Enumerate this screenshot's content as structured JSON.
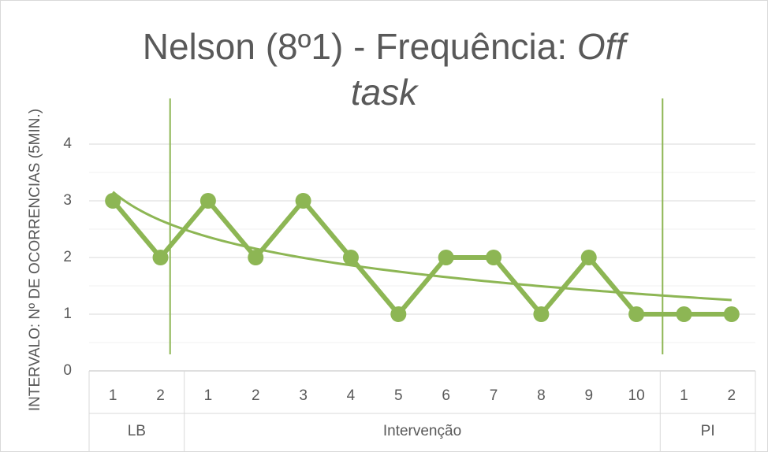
{
  "chart_data": {
    "type": "line",
    "title": "Nelson (8º1) - Frequência:",
    "title_emphasis": "Off task",
    "y_label": "INTERVALO: Nº DE OCORRENCIAS (5MIN.)",
    "categories": [
      "1",
      "2",
      "1",
      "2",
      "3",
      "4",
      "5",
      "6",
      "7",
      "8",
      "9",
      "10",
      "1",
      "2"
    ],
    "groups": [
      {
        "name": "LB",
        "size": 2
      },
      {
        "name": "Intervenção",
        "size": 10
      },
      {
        "name": "PI",
        "size": 2
      }
    ],
    "series": [
      {
        "color": "#8db654",
        "values": [
          3,
          2,
          3,
          2,
          3,
          2,
          1,
          2,
          2,
          1,
          2,
          1,
          1,
          1
        ]
      }
    ],
    "trendline": "logarithmic",
    "ylim": [
      0,
      4
    ],
    "yticks": [
      0,
      1,
      2,
      3,
      4
    ],
    "minor_yticks": [
      0.5,
      1.5,
      2.5,
      3.5
    ],
    "grid": true
  }
}
